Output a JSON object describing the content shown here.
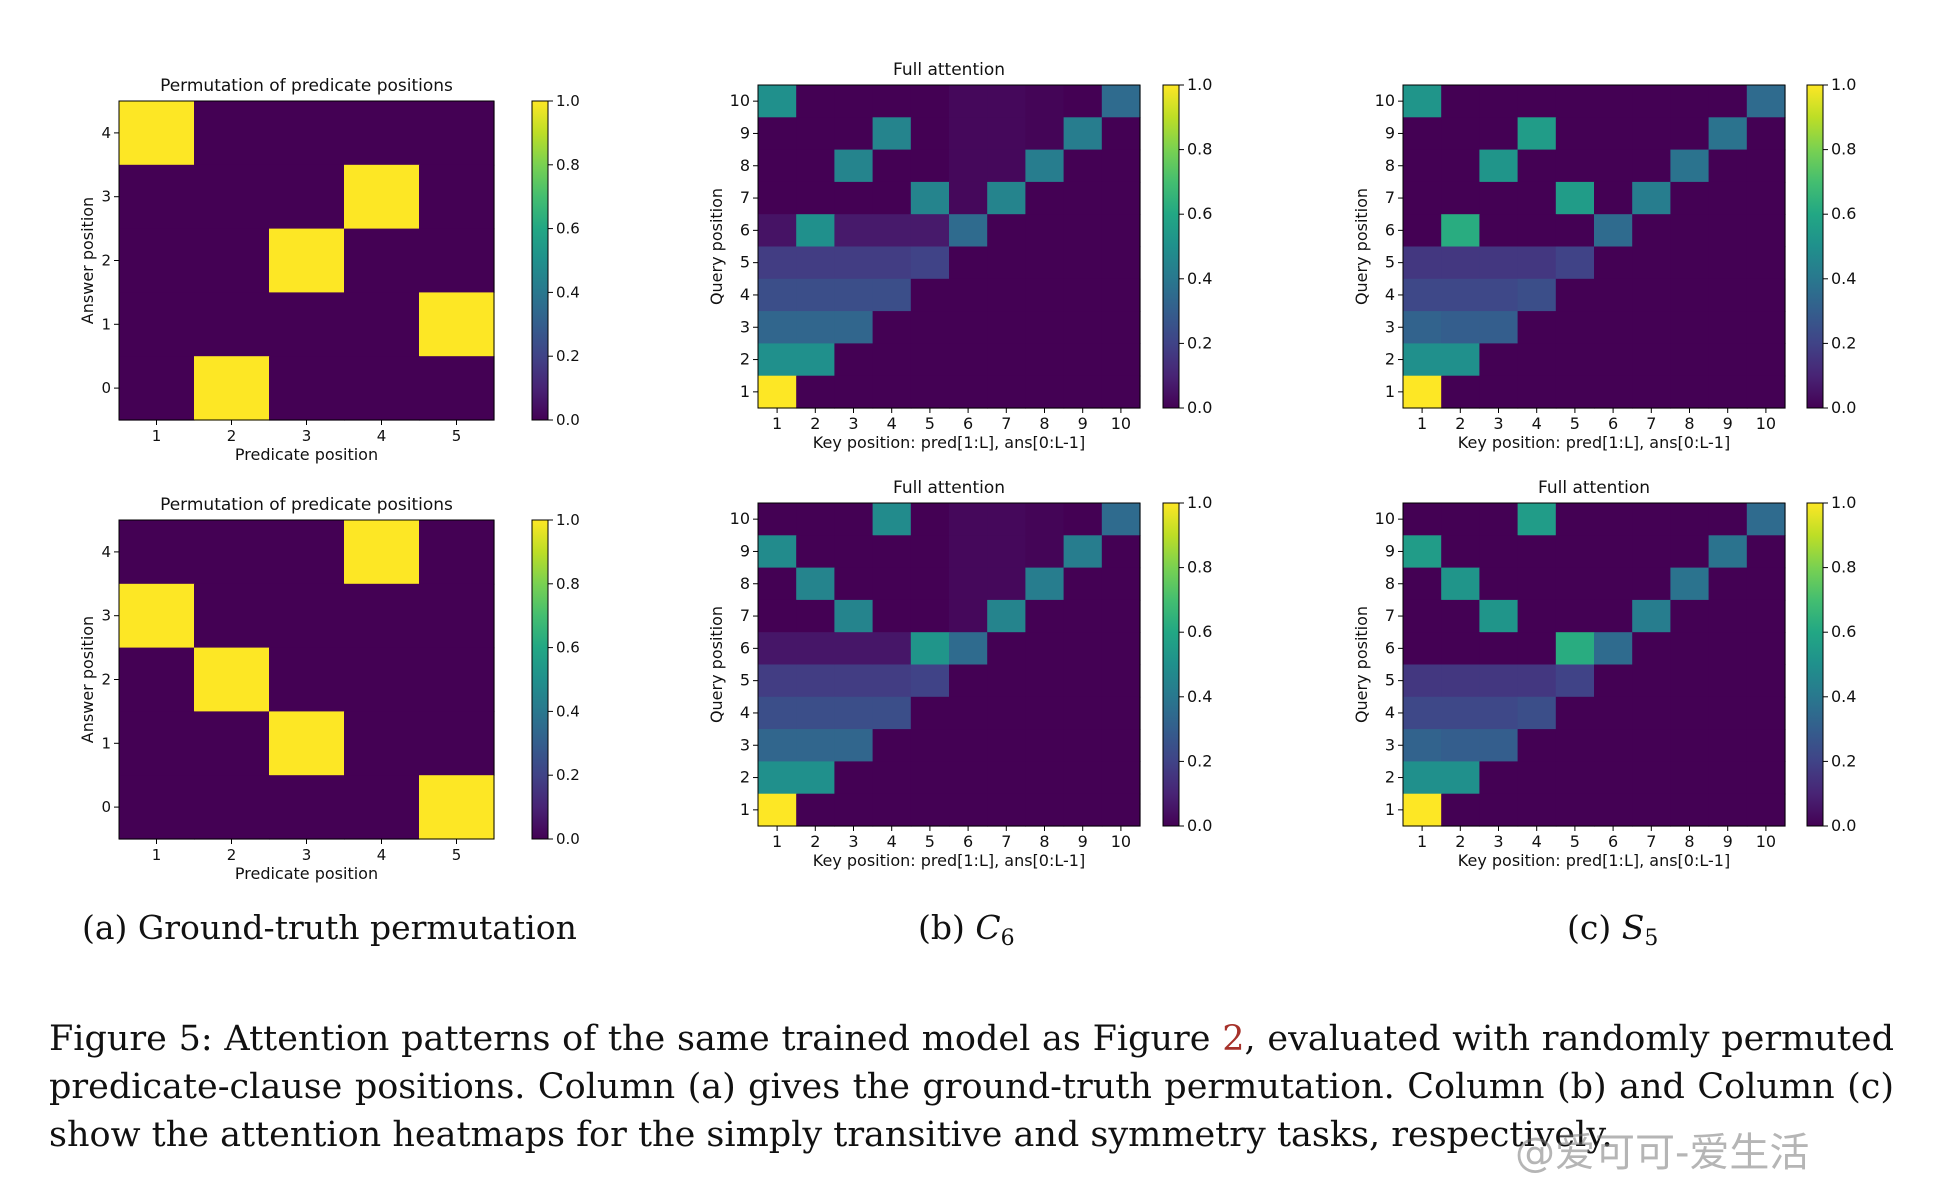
{
  "colorbar_ticks": [
    "0.0",
    "0.2",
    "0.4",
    "0.6",
    "0.8",
    "1.0"
  ],
  "chart_data": [
    {
      "type": "heatmap",
      "panel": "a-top",
      "title": "Permutation of predicate positions",
      "xlabel": "Predicate position",
      "ylabel": "Answer position",
      "x_categories": [
        "1",
        "2",
        "3",
        "4",
        "5"
      ],
      "y_categories": [
        "0",
        "1",
        "2",
        "3",
        "4"
      ],
      "values_top_to_bottom": [
        [
          1,
          0,
          0,
          0,
          0
        ],
        [
          0,
          0,
          0,
          1,
          0
        ],
        [
          0,
          0,
          1,
          0,
          0
        ],
        [
          0,
          0,
          0,
          0,
          1
        ],
        [
          0,
          1,
          0,
          0,
          0
        ]
      ],
      "colorbar_range": [
        0,
        1
      ]
    },
    {
      "type": "heatmap",
      "panel": "a-bottom",
      "title": "Permutation of predicate positions",
      "xlabel": "Predicate position",
      "ylabel": "Answer position",
      "x_categories": [
        "1",
        "2",
        "3",
        "4",
        "5"
      ],
      "y_categories": [
        "0",
        "1",
        "2",
        "3",
        "4"
      ],
      "values_top_to_bottom": [
        [
          0,
          0,
          0,
          1,
          0
        ],
        [
          1,
          0,
          0,
          0,
          0
        ],
        [
          0,
          1,
          0,
          0,
          0
        ],
        [
          0,
          0,
          1,
          0,
          0
        ],
        [
          0,
          0,
          0,
          0,
          1
        ]
      ],
      "colorbar_range": [
        0,
        1
      ]
    },
    {
      "type": "heatmap",
      "panel": "b-top",
      "title": "Full attention",
      "xlabel": "Key position: pred[1:L], ans[0:L-1]",
      "ylabel": "Query position",
      "x_categories": [
        "1",
        "2",
        "3",
        "4",
        "5",
        "6",
        "7",
        "8",
        "9",
        "10"
      ],
      "y_categories": [
        "1",
        "2",
        "3",
        "4",
        "5",
        "6",
        "7",
        "8",
        "9",
        "10"
      ],
      "values_top_to_bottom": [
        [
          0.5,
          0,
          0,
          0,
          0,
          0.02,
          0.02,
          0.01,
          0,
          0.35
        ],
        [
          0,
          0,
          0,
          0.45,
          0,
          0.02,
          0.02,
          0.01,
          0.42,
          0
        ],
        [
          0,
          0,
          0.45,
          0,
          0,
          0.02,
          0.02,
          0.42,
          0,
          0
        ],
        [
          0,
          0,
          0,
          0,
          0.45,
          0.02,
          0.45,
          0,
          0,
          0
        ],
        [
          0.05,
          0.5,
          0.07,
          0.07,
          0.07,
          0.35,
          0,
          0,
          0,
          0
        ],
        [
          0.18,
          0.18,
          0.18,
          0.18,
          0.2,
          0,
          0,
          0,
          0,
          0
        ],
        [
          0.24,
          0.24,
          0.24,
          0.24,
          0,
          0,
          0,
          0,
          0,
          0
        ],
        [
          0.33,
          0.33,
          0.33,
          0,
          0,
          0,
          0,
          0,
          0,
          0
        ],
        [
          0.5,
          0.5,
          0,
          0,
          0,
          0,
          0,
          0,
          0,
          0
        ],
        [
          1.0,
          0,
          0,
          0,
          0,
          0,
          0,
          0,
          0,
          0
        ]
      ],
      "colorbar_range": [
        0,
        1
      ]
    },
    {
      "type": "heatmap",
      "panel": "c-top",
      "title": "",
      "xlabel": "Key position: pred[1:L], ans[0:L-1]",
      "ylabel": "Query position",
      "x_categories": [
        "1",
        "2",
        "3",
        "4",
        "5",
        "6",
        "7",
        "8",
        "9",
        "10"
      ],
      "y_categories": [
        "1",
        "2",
        "3",
        "4",
        "5",
        "6",
        "7",
        "8",
        "9",
        "10"
      ],
      "values_top_to_bottom": [
        [
          0.52,
          0,
          0,
          0,
          0,
          0,
          0,
          0,
          0,
          0.35
        ],
        [
          0,
          0,
          0,
          0.55,
          0,
          0,
          0,
          0,
          0.38,
          0
        ],
        [
          0,
          0,
          0.52,
          0,
          0,
          0,
          0,
          0.38,
          0,
          0
        ],
        [
          0,
          0,
          0,
          0,
          0.55,
          0,
          0.42,
          0,
          0,
          0
        ],
        [
          0,
          0.62,
          0,
          0,
          0,
          0.35,
          0,
          0,
          0,
          0
        ],
        [
          0.16,
          0.16,
          0.16,
          0.16,
          0.2,
          0,
          0,
          0,
          0,
          0
        ],
        [
          0.22,
          0.22,
          0.22,
          0.24,
          0,
          0,
          0,
          0,
          0,
          0
        ],
        [
          0.32,
          0.3,
          0.3,
          0,
          0,
          0,
          0,
          0,
          0,
          0
        ],
        [
          0.5,
          0.5,
          0,
          0,
          0,
          0,
          0,
          0,
          0,
          0
        ],
        [
          1.0,
          0,
          0,
          0,
          0,
          0,
          0,
          0,
          0,
          0
        ]
      ],
      "colorbar_range": [
        0,
        1
      ]
    },
    {
      "type": "heatmap",
      "panel": "b-bottom",
      "title": "Full attention",
      "xlabel": "Key position: pred[1:L], ans[0:L-1]",
      "ylabel": "Query position",
      "x_categories": [
        "1",
        "2",
        "3",
        "4",
        "5",
        "6",
        "7",
        "8",
        "9",
        "10"
      ],
      "y_categories": [
        "1",
        "2",
        "3",
        "4",
        "5",
        "6",
        "7",
        "8",
        "9",
        "10"
      ],
      "values_top_to_bottom": [
        [
          0,
          0,
          0,
          0.48,
          0,
          0.02,
          0.02,
          0.01,
          0,
          0.35
        ],
        [
          0.48,
          0,
          0,
          0,
          0,
          0.02,
          0.02,
          0.01,
          0.42,
          0
        ],
        [
          0,
          0.45,
          0,
          0,
          0,
          0.02,
          0.02,
          0.42,
          0,
          0
        ],
        [
          0,
          0,
          0.45,
          0,
          0,
          0.02,
          0.45,
          0,
          0,
          0
        ],
        [
          0.06,
          0.06,
          0.06,
          0.06,
          0.52,
          0.35,
          0,
          0,
          0,
          0
        ],
        [
          0.18,
          0.18,
          0.18,
          0.18,
          0.2,
          0,
          0,
          0,
          0,
          0
        ],
        [
          0.24,
          0.24,
          0.24,
          0.24,
          0,
          0,
          0,
          0,
          0,
          0
        ],
        [
          0.33,
          0.33,
          0.33,
          0,
          0,
          0,
          0,
          0,
          0,
          0
        ],
        [
          0.5,
          0.5,
          0,
          0,
          0,
          0,
          0,
          0,
          0,
          0
        ],
        [
          1.0,
          0,
          0,
          0,
          0,
          0,
          0,
          0,
          0,
          0
        ]
      ],
      "colorbar_range": [
        0,
        1
      ]
    },
    {
      "type": "heatmap",
      "panel": "c-bottom",
      "title": "Full attention",
      "xlabel": "Key position: pred[1:L], ans[0:L-1]",
      "ylabel": "Query position",
      "x_categories": [
        "1",
        "2",
        "3",
        "4",
        "5",
        "6",
        "7",
        "8",
        "9",
        "10"
      ],
      "y_categories": [
        "1",
        "2",
        "3",
        "4",
        "5",
        "6",
        "7",
        "8",
        "9",
        "10"
      ],
      "values_top_to_bottom": [
        [
          0,
          0,
          0,
          0.55,
          0,
          0,
          0,
          0,
          0,
          0.35
        ],
        [
          0.55,
          0,
          0,
          0,
          0,
          0,
          0,
          0,
          0.38,
          0
        ],
        [
          0,
          0.52,
          0,
          0,
          0,
          0,
          0,
          0.38,
          0,
          0
        ],
        [
          0,
          0,
          0.52,
          0,
          0,
          0,
          0.42,
          0,
          0,
          0
        ],
        [
          0,
          0,
          0,
          0,
          0.62,
          0.35,
          0,
          0,
          0,
          0
        ],
        [
          0.16,
          0.16,
          0.16,
          0.16,
          0.2,
          0,
          0,
          0,
          0,
          0
        ],
        [
          0.22,
          0.22,
          0.22,
          0.24,
          0,
          0,
          0,
          0,
          0,
          0
        ],
        [
          0.32,
          0.3,
          0.3,
          0,
          0,
          0,
          0,
          0,
          0,
          0
        ],
        [
          0.5,
          0.5,
          0,
          0,
          0,
          0,
          0,
          0,
          0,
          0
        ],
        [
          1.0,
          0,
          0,
          0,
          0,
          0,
          0,
          0,
          0,
          0
        ]
      ],
      "colorbar_range": [
        0,
        1
      ]
    }
  ],
  "subcaptions": {
    "a": "(a) Ground-truth permutation",
    "b_prefix": "(b) ",
    "b_symbol": "C",
    "b_sub": "6",
    "c_prefix": "(c) ",
    "c_symbol": "S",
    "c_sub": "5"
  },
  "caption": {
    "part1": "Figure 5: Attention patterns of the same trained model as Figure ",
    "ref": "2",
    "part2": ", evaluated with randomly permuted predicate-clause positions. Column (a) gives the ground-truth permutation. Column (b) and Column (c) show the attention heatmaps for the simply transitive and symmetry tasks, respectively."
  },
  "watermark": "@爱可可-爱生活"
}
